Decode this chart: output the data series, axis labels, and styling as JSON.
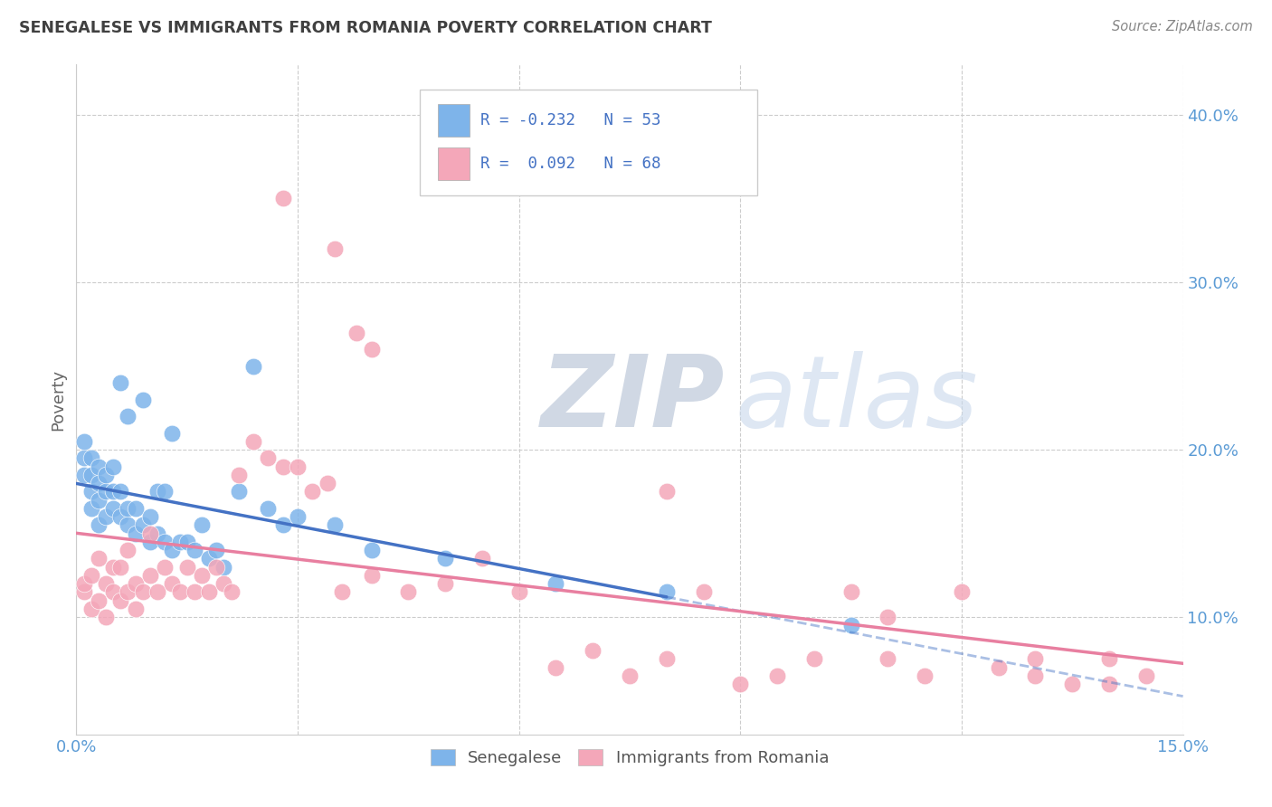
{
  "title": "SENEGALESE VS IMMIGRANTS FROM ROMANIA POVERTY CORRELATION CHART",
  "source": "Source: ZipAtlas.com",
  "ylabel": "Poverty",
  "yticks": [
    "10.0%",
    "20.0%",
    "30.0%",
    "40.0%"
  ],
  "ytick_vals": [
    0.1,
    0.2,
    0.3,
    0.4
  ],
  "xlim": [
    0.0,
    0.15
  ],
  "ylim": [
    0.03,
    0.43
  ],
  "blue_color": "#7EB4EA",
  "pink_color": "#F4A7B9",
  "blue_line_color": "#4472C4",
  "pink_line_color": "#E87FA0",
  "blue_scatter_x": [
    0.001,
    0.001,
    0.001,
    0.002,
    0.002,
    0.002,
    0.002,
    0.003,
    0.003,
    0.003,
    0.003,
    0.004,
    0.004,
    0.004,
    0.005,
    0.005,
    0.005,
    0.006,
    0.006,
    0.006,
    0.007,
    0.007,
    0.007,
    0.008,
    0.008,
    0.009,
    0.009,
    0.01,
    0.01,
    0.011,
    0.011,
    0.012,
    0.012,
    0.013,
    0.013,
    0.014,
    0.015,
    0.016,
    0.017,
    0.018,
    0.019,
    0.02,
    0.022,
    0.024,
    0.026,
    0.028,
    0.03,
    0.035,
    0.04,
    0.05,
    0.065,
    0.08,
    0.105
  ],
  "blue_scatter_y": [
    0.185,
    0.195,
    0.205,
    0.175,
    0.185,
    0.195,
    0.165,
    0.17,
    0.18,
    0.19,
    0.155,
    0.16,
    0.175,
    0.185,
    0.165,
    0.175,
    0.19,
    0.16,
    0.175,
    0.24,
    0.155,
    0.165,
    0.22,
    0.15,
    0.165,
    0.155,
    0.23,
    0.145,
    0.16,
    0.15,
    0.175,
    0.145,
    0.175,
    0.14,
    0.21,
    0.145,
    0.145,
    0.14,
    0.155,
    0.135,
    0.14,
    0.13,
    0.175,
    0.25,
    0.165,
    0.155,
    0.16,
    0.155,
    0.14,
    0.135,
    0.12,
    0.115,
    0.095
  ],
  "pink_scatter_x": [
    0.001,
    0.001,
    0.002,
    0.002,
    0.003,
    0.003,
    0.004,
    0.004,
    0.005,
    0.005,
    0.006,
    0.006,
    0.007,
    0.007,
    0.008,
    0.008,
    0.009,
    0.01,
    0.01,
    0.011,
    0.012,
    0.013,
    0.014,
    0.015,
    0.016,
    0.017,
    0.018,
    0.019,
    0.02,
    0.021,
    0.022,
    0.024,
    0.026,
    0.028,
    0.03,
    0.032,
    0.034,
    0.036,
    0.04,
    0.045,
    0.05,
    0.055,
    0.06,
    0.065,
    0.07,
    0.075,
    0.08,
    0.085,
    0.09,
    0.095,
    0.1,
    0.105,
    0.11,
    0.115,
    0.12,
    0.125,
    0.13,
    0.135,
    0.14,
    0.145,
    0.028,
    0.035,
    0.038,
    0.04,
    0.08,
    0.11,
    0.13,
    0.14
  ],
  "pink_scatter_y": [
    0.115,
    0.12,
    0.105,
    0.125,
    0.11,
    0.135,
    0.12,
    0.1,
    0.115,
    0.13,
    0.11,
    0.13,
    0.115,
    0.14,
    0.12,
    0.105,
    0.115,
    0.125,
    0.15,
    0.115,
    0.13,
    0.12,
    0.115,
    0.13,
    0.115,
    0.125,
    0.115,
    0.13,
    0.12,
    0.115,
    0.185,
    0.205,
    0.195,
    0.19,
    0.19,
    0.175,
    0.18,
    0.115,
    0.125,
    0.115,
    0.12,
    0.135,
    0.115,
    0.07,
    0.08,
    0.065,
    0.075,
    0.115,
    0.06,
    0.065,
    0.075,
    0.115,
    0.075,
    0.065,
    0.115,
    0.07,
    0.065,
    0.06,
    0.075,
    0.065,
    0.35,
    0.32,
    0.27,
    0.26,
    0.175,
    0.1,
    0.075,
    0.06
  ]
}
